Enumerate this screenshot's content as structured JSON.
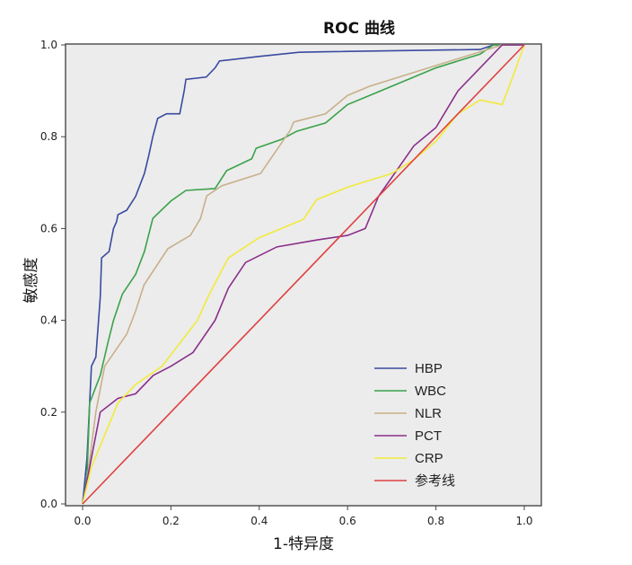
{
  "chart_data": {
    "type": "line",
    "title": "ROC 曲线",
    "xlabel": "1-特异度",
    "ylabel": "敏感度",
    "xlim": [
      0,
      1
    ],
    "ylim": [
      0,
      1
    ],
    "xticks": [
      "0.0",
      "0.2",
      "0.4",
      "0.6",
      "0.8",
      "1.0"
    ],
    "yticks": [
      "0.0",
      "0.2",
      "0.4",
      "0.6",
      "0.8",
      "1.0"
    ],
    "grid": false,
    "legend": "bottom-right",
    "series": [
      {
        "name": "HBP",
        "color": "#3a4aa0",
        "points": [
          [
            0,
            0
          ],
          [
            0.01,
            0.1
          ],
          [
            0.015,
            0.2
          ],
          [
            0.02,
            0.3
          ],
          [
            0.03,
            0.32
          ],
          [
            0.04,
            0.45
          ],
          [
            0.043,
            0.536
          ],
          [
            0.06,
            0.55
          ],
          [
            0.07,
            0.6
          ],
          [
            0.077,
            0.615
          ],
          [
            0.08,
            0.63
          ],
          [
            0.1,
            0.64
          ],
          [
            0.12,
            0.67
          ],
          [
            0.14,
            0.72
          ],
          [
            0.15,
            0.76
          ],
          [
            0.159,
            0.8
          ],
          [
            0.17,
            0.84
          ],
          [
            0.19,
            0.85
          ],
          [
            0.22,
            0.85
          ],
          [
            0.23,
            0.9
          ],
          [
            0.234,
            0.925
          ],
          [
            0.28,
            0.93
          ],
          [
            0.3,
            0.95
          ],
          [
            0.31,
            0.965
          ],
          [
            0.4,
            0.975
          ],
          [
            0.49,
            0.984
          ],
          [
            0.54,
            0.985
          ],
          [
            0.9,
            0.99
          ],
          [
            0.93,
            1.0
          ],
          [
            1.0,
            1.0
          ]
        ]
      },
      {
        "name": "WBC",
        "color": "#3aa24a",
        "points": [
          [
            0,
            0
          ],
          [
            0.01,
            0.06
          ],
          [
            0.016,
            0.22
          ],
          [
            0.04,
            0.28
          ],
          [
            0.057,
            0.35
          ],
          [
            0.07,
            0.4
          ],
          [
            0.09,
            0.457
          ],
          [
            0.12,
            0.5
          ],
          [
            0.14,
            0.55
          ],
          [
            0.159,
            0.622
          ],
          [
            0.2,
            0.66
          ],
          [
            0.234,
            0.683
          ],
          [
            0.3,
            0.687
          ],
          [
            0.326,
            0.726
          ],
          [
            0.383,
            0.752
          ],
          [
            0.393,
            0.775
          ],
          [
            0.45,
            0.794
          ],
          [
            0.485,
            0.812
          ],
          [
            0.55,
            0.83
          ],
          [
            0.6,
            0.87
          ],
          [
            0.65,
            0.89
          ],
          [
            0.7,
            0.91
          ],
          [
            0.8,
            0.95
          ],
          [
            0.9,
            0.98
          ],
          [
            0.93,
            1.0
          ],
          [
            1.0,
            1.0
          ]
        ]
      },
      {
        "name": "NLR",
        "color": "#c8b08a",
        "points": [
          [
            0,
            0
          ],
          [
            0.01,
            0.05
          ],
          [
            0.03,
            0.2
          ],
          [
            0.05,
            0.3
          ],
          [
            0.1,
            0.37
          ],
          [
            0.12,
            0.42
          ],
          [
            0.139,
            0.477
          ],
          [
            0.193,
            0.556
          ],
          [
            0.244,
            0.585
          ],
          [
            0.267,
            0.622
          ],
          [
            0.281,
            0.671
          ],
          [
            0.315,
            0.693
          ],
          [
            0.403,
            0.72
          ],
          [
            0.438,
            0.769
          ],
          [
            0.47,
            0.814
          ],
          [
            0.478,
            0.832
          ],
          [
            0.55,
            0.85
          ],
          [
            0.6,
            0.89
          ],
          [
            0.65,
            0.91
          ],
          [
            0.75,
            0.94
          ],
          [
            0.85,
            0.97
          ],
          [
            0.95,
            1.0
          ],
          [
            1.0,
            1.0
          ]
        ]
      },
      {
        "name": "PCT",
        "color": "#8a2f8a",
        "points": [
          [
            0,
            0
          ],
          [
            0.02,
            0.1
          ],
          [
            0.04,
            0.2
          ],
          [
            0.08,
            0.23
          ],
          [
            0.12,
            0.24
          ],
          [
            0.16,
            0.28
          ],
          [
            0.2,
            0.3
          ],
          [
            0.25,
            0.33
          ],
          [
            0.3,
            0.4
          ],
          [
            0.33,
            0.47
          ],
          [
            0.369,
            0.526
          ],
          [
            0.44,
            0.56
          ],
          [
            0.53,
            0.575
          ],
          [
            0.6,
            0.585
          ],
          [
            0.64,
            0.6
          ],
          [
            0.67,
            0.67
          ],
          [
            0.75,
            0.78
          ],
          [
            0.8,
            0.82
          ],
          [
            0.85,
            0.9
          ],
          [
            0.9,
            0.95
          ],
          [
            0.95,
            1.0
          ],
          [
            1.0,
            1.0
          ]
        ]
      },
      {
        "name": "CRP",
        "color": "#f2ea3a",
        "points": [
          [
            0,
            0
          ],
          [
            0.02,
            0.08
          ],
          [
            0.05,
            0.15
          ],
          [
            0.08,
            0.22
          ],
          [
            0.12,
            0.26
          ],
          [
            0.18,
            0.3
          ],
          [
            0.22,
            0.35
          ],
          [
            0.26,
            0.4
          ],
          [
            0.287,
            0.457
          ],
          [
            0.33,
            0.536
          ],
          [
            0.4,
            0.58
          ],
          [
            0.5,
            0.62
          ],
          [
            0.53,
            0.663
          ],
          [
            0.6,
            0.69
          ],
          [
            0.7,
            0.72
          ],
          [
            0.75,
            0.75
          ],
          [
            0.8,
            0.79
          ],
          [
            0.85,
            0.85
          ],
          [
            0.9,
            0.88
          ],
          [
            0.95,
            0.87
          ],
          [
            0.97,
            0.92
          ],
          [
            1.0,
            1.0
          ]
        ]
      },
      {
        "name": "参考线",
        "color": "#e04040",
        "points": [
          [
            0,
            0
          ],
          [
            1,
            1
          ]
        ]
      }
    ]
  }
}
